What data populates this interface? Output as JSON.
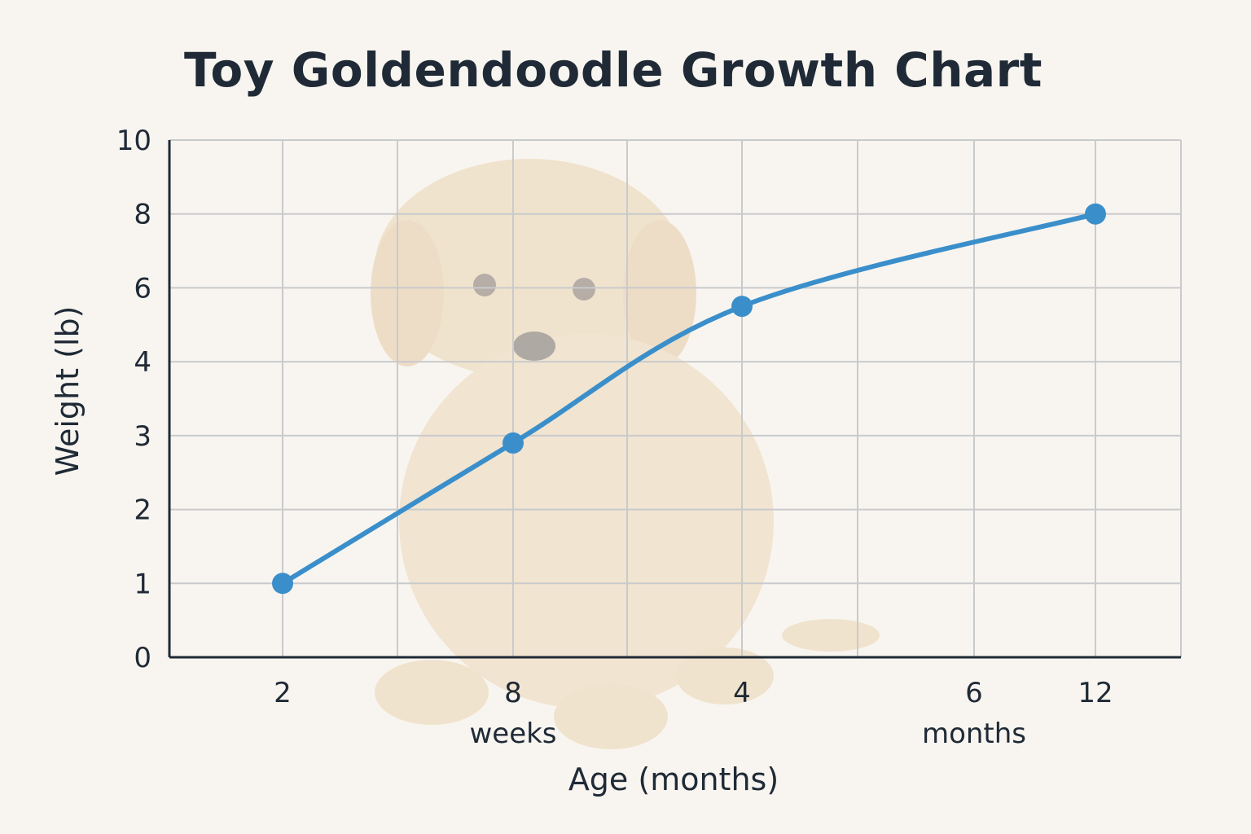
{
  "chart_data": {
    "type": "line",
    "title": "Toy Goldendoodle Growth Chart",
    "xlabel": "Age (months)",
    "ylabel": "Weight (lb)",
    "x_tick_labels": [
      "2",
      "8",
      "4",
      "6",
      "12"
    ],
    "x_sub_labels": [
      {
        "under": "8",
        "text": "weeks"
      },
      {
        "under": "6",
        "text": "months"
      }
    ],
    "y_tick_labels": [
      "0",
      "1",
      "2",
      "3",
      "4",
      "6",
      "8",
      "10"
    ],
    "ylim": [
      0,
      10
    ],
    "grid": true,
    "series": [
      {
        "color": "#3a8fcb",
        "points": [
          {
            "x": "2",
            "y": 1
          },
          {
            "x": "8",
            "y": 2.9
          },
          {
            "x": "4",
            "y": 5.5
          },
          {
            "x": "12",
            "y": 8
          }
        ]
      }
    ],
    "background": "faded puppy photo"
  }
}
